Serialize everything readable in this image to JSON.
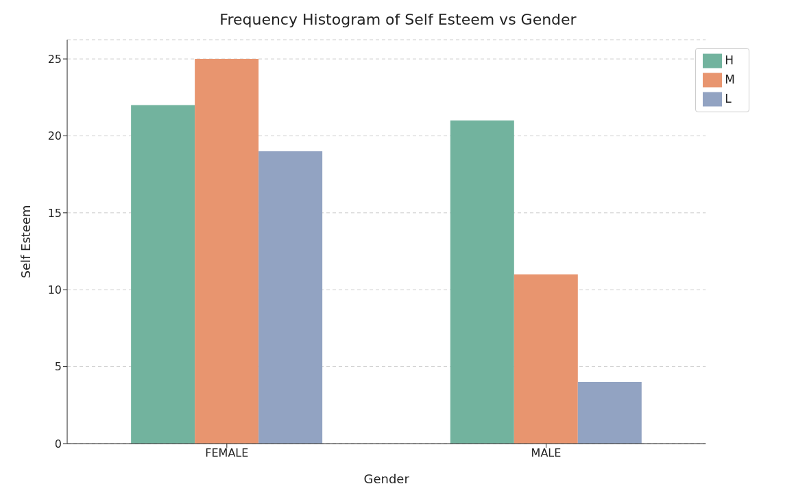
{
  "chart_data": {
    "type": "bar",
    "title": "Frequency Histogram of Self Esteem vs Gender",
    "xlabel": "Gender",
    "ylabel": "Self Esteem",
    "categories": [
      "FEMALE",
      "MALE"
    ],
    "series": [
      {
        "name": "H",
        "color": "#72b39e",
        "values": [
          22,
          21
        ]
      },
      {
        "name": "M",
        "color": "#e8956f",
        "values": [
          25,
          11
        ]
      },
      {
        "name": "L",
        "color": "#92a3c2",
        "values": [
          19,
          4
        ]
      }
    ],
    "ylim": [
      0,
      26.25
    ],
    "yticks": [
      0,
      5,
      10,
      15,
      20,
      25
    ],
    "grid": "y",
    "legend": "top right"
  }
}
